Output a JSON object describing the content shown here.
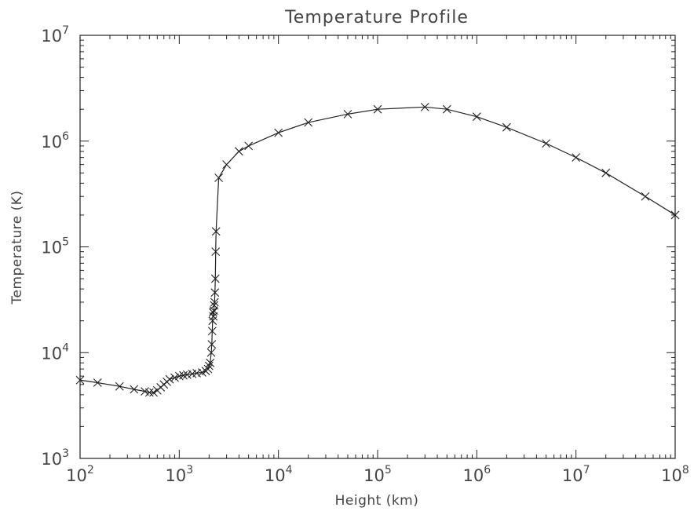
{
  "chart_data": {
    "type": "line",
    "title": "Temperature Profile",
    "xlabel": "Height (km)",
    "ylabel": "Temperature (K)",
    "xscale": "log",
    "yscale": "log",
    "xlim": [
      100,
      100000000
    ],
    "ylim": [
      1000,
      10000000
    ],
    "grid": false,
    "x_ticks": [
      {
        "base": "10",
        "exp": "2",
        "value": 100
      },
      {
        "base": "10",
        "exp": "3",
        "value": 1000
      },
      {
        "base": "10",
        "exp": "4",
        "value": 10000
      },
      {
        "base": "10",
        "exp": "5",
        "value": 100000
      },
      {
        "base": "10",
        "exp": "6",
        "value": 1000000
      },
      {
        "base": "10",
        "exp": "7",
        "value": 10000000
      },
      {
        "base": "10",
        "exp": "8",
        "value": 100000000
      }
    ],
    "y_ticks": [
      {
        "base": "10",
        "exp": "3",
        "value": 1000
      },
      {
        "base": "10",
        "exp": "4",
        "value": 10000
      },
      {
        "base": "10",
        "exp": "5",
        "value": 100000
      },
      {
        "base": "10",
        "exp": "6",
        "value": 1000000
      },
      {
        "base": "10",
        "exp": "7",
        "value": 10000000
      }
    ],
    "marker": "x",
    "line_color": "#222222",
    "series": [
      {
        "points": [
          [
            100,
            5500
          ],
          [
            150,
            5200
          ],
          [
            250,
            4800
          ],
          [
            350,
            4500
          ],
          [
            450,
            4300
          ],
          [
            500,
            4200
          ],
          [
            550,
            4200
          ],
          [
            600,
            4400
          ],
          [
            650,
            4700
          ],
          [
            700,
            5000
          ],
          [
            750,
            5300
          ],
          [
            800,
            5600
          ],
          [
            900,
            5800
          ],
          [
            1000,
            6000
          ],
          [
            1100,
            6100
          ],
          [
            1200,
            6200
          ],
          [
            1350,
            6300
          ],
          [
            1500,
            6400
          ],
          [
            1700,
            6500
          ],
          [
            1850,
            6700
          ],
          [
            1950,
            7000
          ],
          [
            2000,
            7500
          ],
          [
            2050,
            8000
          ],
          [
            2100,
            10000
          ],
          [
            2130,
            12000
          ],
          [
            2150,
            16000
          ],
          [
            2170,
            20000
          ],
          [
            2190,
            24000
          ],
          [
            2210,
            22000
          ],
          [
            2230,
            25000
          ],
          [
            2250,
            28000
          ],
          [
            2270,
            30000
          ],
          [
            2290,
            37000
          ],
          [
            2310,
            50000
          ],
          [
            2330,
            90000
          ],
          [
            2350,
            140000
          ],
          [
            2500,
            450000
          ],
          [
            3000,
            600000
          ],
          [
            4000,
            800000
          ],
          [
            5000,
            900000
          ],
          [
            10000,
            1200000
          ],
          [
            20000,
            1500000
          ],
          [
            50000,
            1800000
          ],
          [
            100000,
            2000000
          ],
          [
            300000,
            2100000
          ],
          [
            500000,
            2000000
          ],
          [
            1000000,
            1700000
          ],
          [
            2000000,
            1350000
          ],
          [
            5000000,
            950000
          ],
          [
            10000000,
            700000
          ],
          [
            20000000,
            500000
          ],
          [
            50000000,
            300000
          ],
          [
            100000000,
            200000
          ]
        ]
      }
    ]
  }
}
